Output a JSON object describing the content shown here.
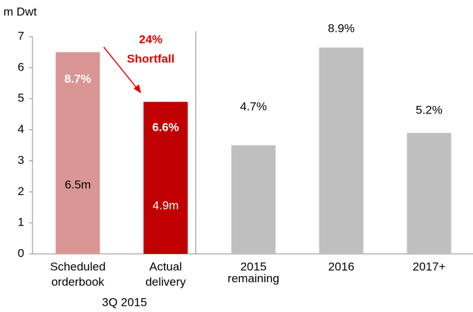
{
  "chart_data": {
    "type": "bar",
    "y_axis_label": "m Dwt",
    "categories": [
      "Scheduled orderbook",
      "Actual delivery",
      "2015 remaining",
      "2016",
      "2017+"
    ],
    "group_label": "3Q 2015",
    "values": [
      6.5,
      4.9,
      3.5,
      6.65,
      3.9
    ],
    "value_labels": [
      "6.5m",
      "4.9m",
      null,
      null,
      null
    ],
    "rate_labels": [
      "8.7%",
      "6.6%",
      "4.7%",
      "8.9%",
      "5.2%"
    ],
    "colors": [
      "#d99694",
      "#c00000",
      "#bfbfbf",
      "#bfbfbf",
      "#bfbfbf"
    ],
    "annotation": [
      "24%",
      "Shortfall"
    ],
    "ylim": [
      0,
      7
    ],
    "yticks": [
      0,
      1,
      2,
      3,
      4,
      5,
      6,
      7
    ]
  }
}
